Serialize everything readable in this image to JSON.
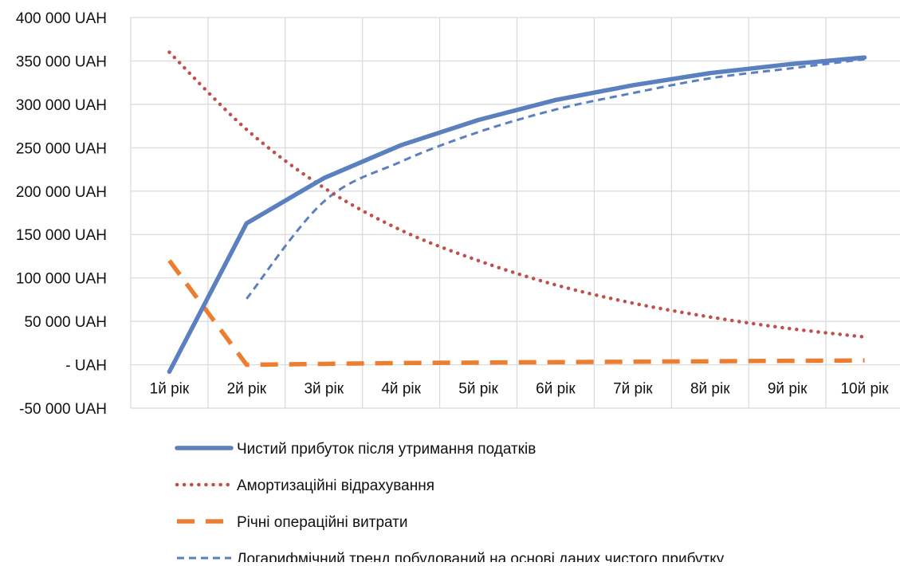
{
  "chart_data": {
    "type": "line",
    "title": "",
    "xlabel": "",
    "ylabel": "",
    "categories": [
      "1й рік",
      "2й рік",
      "3й рік",
      "4й рік",
      "5й рік",
      "6й рік",
      "7й рік",
      "8й рік",
      "9й рік",
      "10й рік"
    ],
    "ylim": [
      -50000,
      400000
    ],
    "y_ticks": [
      {
        "value": 400000,
        "label": "400 000 UAH"
      },
      {
        "value": 350000,
        "label": "350 000 UAH"
      },
      {
        "value": 300000,
        "label": "300 000 UAH"
      },
      {
        "value": 250000,
        "label": "250 000 UAH"
      },
      {
        "value": 200000,
        "label": "200 000 UAH"
      },
      {
        "value": 150000,
        "label": "150 000 UAH"
      },
      {
        "value": 100000,
        "label": "100 000 UAH"
      },
      {
        "value": 50000,
        "label": "50 000 UAH"
      },
      {
        "value": 0,
        "label": "- UAH"
      },
      {
        "value": -50000,
        "label": "-50 000 UAH"
      }
    ],
    "grid": true,
    "legend_position": "bottom",
    "series": [
      {
        "name": "Чистий прибуток після утримання податків",
        "color": "#5b80c0",
        "line_style": "solid",
        "values": [
          -8000,
          163000,
          215000,
          253000,
          282000,
          305000,
          322000,
          336000,
          346000,
          354000
        ]
      },
      {
        "name": "Амортизаційні відрахування",
        "color": "#c0504d",
        "line_style": "dotted",
        "values": [
          360000,
          271000,
          204000,
          155000,
          120000,
          92000,
          71000,
          55000,
          42000,
          32000
        ]
      },
      {
        "name": "Річні операційні витрати",
        "color": "#ed7d31",
        "line_style": "dashed",
        "values": [
          120000,
          0,
          1000,
          2000,
          2500,
          3000,
          3500,
          4000,
          4500,
          5000
        ]
      },
      {
        "name": "Логарифмічний тренд побудований на основі даних чистого прибутку",
        "color": "#5b80c0",
        "line_style": "short-dashed",
        "values": [
          null,
          76000,
          188000,
          234000,
          268000,
          294000,
          313000,
          330000,
          341000,
          352000
        ]
      }
    ]
  }
}
